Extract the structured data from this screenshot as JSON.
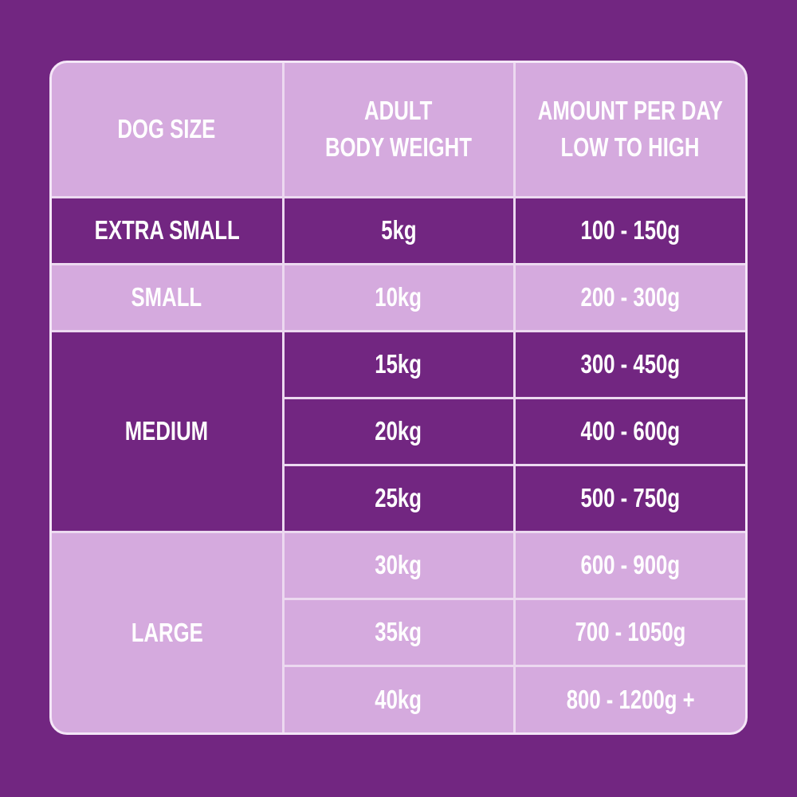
{
  "table": {
    "header": [
      [
        "DOG SIZE"
      ],
      [
        "ADULT",
        "BODY WEIGHT"
      ],
      [
        "AMOUNT PER DAY",
        "LOW TO HIGH"
      ]
    ],
    "groups": [
      {
        "size": "EXTRA SMALL",
        "rows": [
          [
            "5kg",
            "100 - 150g"
          ]
        ]
      },
      {
        "size": "SMALL",
        "rows": [
          [
            "10kg",
            "200 - 300g"
          ]
        ]
      },
      {
        "size": "MEDIUM",
        "rows": [
          [
            "15kg",
            "300 - 450g"
          ],
          [
            "20kg",
            "400 - 600g"
          ],
          [
            "25kg",
            "500 - 750g"
          ]
        ]
      },
      {
        "size": "LARGE",
        "rows": [
          [
            "30kg",
            "600 - 900g"
          ],
          [
            "35kg",
            "700 - 1050g"
          ],
          [
            "40kg",
            "800 - 1200g +"
          ]
        ]
      }
    ]
  }
}
